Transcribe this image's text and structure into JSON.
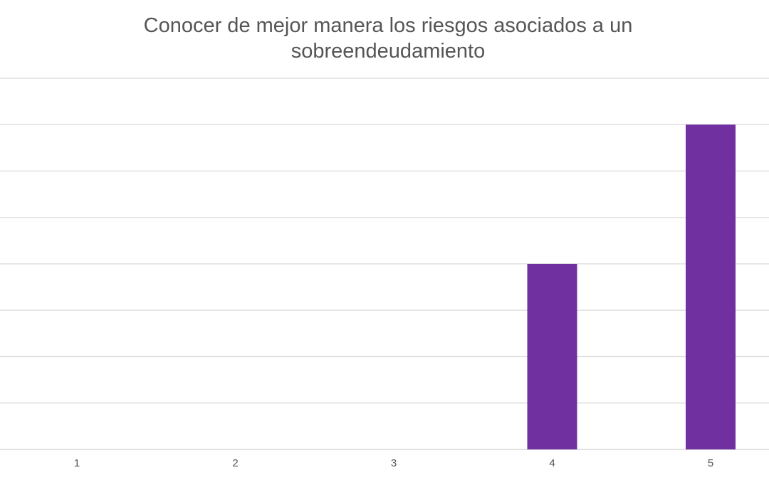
{
  "chart_data": {
    "type": "bar",
    "title": "Conocer de mejor manera los riesgos asociados a un sobreendeudamiento",
    "xlabel": "",
    "ylabel": "",
    "categories": [
      "1",
      "2",
      "3",
      "4",
      "5"
    ],
    "values": [
      0,
      0,
      0,
      4,
      7
    ],
    "ylim": [
      0,
      8
    ],
    "grid": true,
    "legend": "none",
    "bar_color": "#7030A0",
    "grid_color": "#D9D9D9"
  }
}
